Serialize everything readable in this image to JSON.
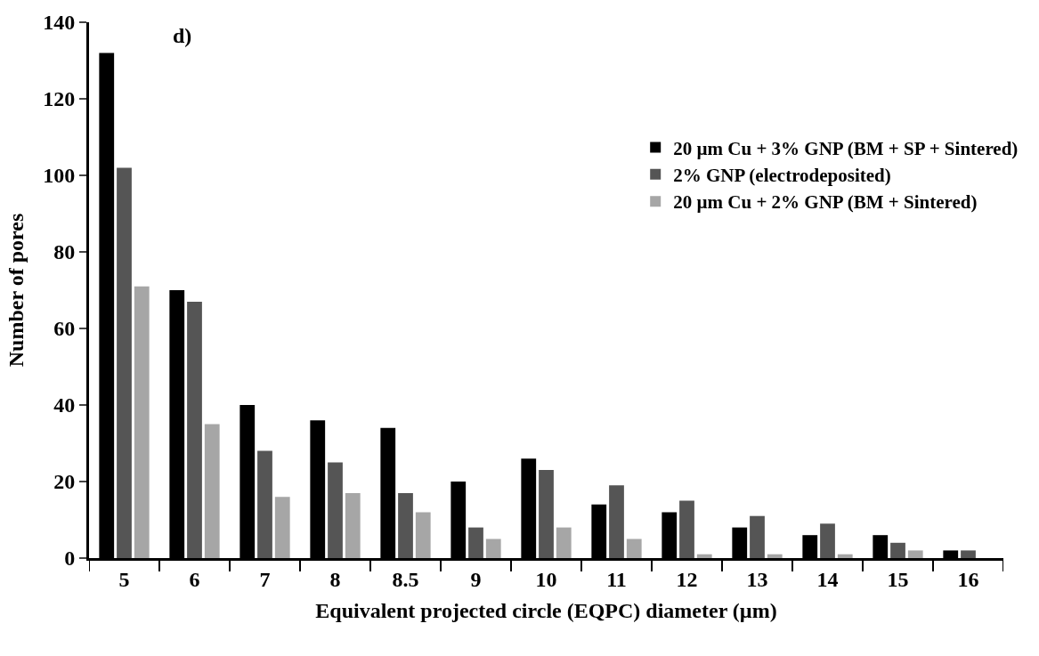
{
  "chart_data": {
    "type": "bar",
    "xlabel": "Equivalent projected circle (EQPC) diameter (µm)",
    "ylabel": "Number of pores",
    "annotations": [
      "d)"
    ],
    "categories": [
      "5",
      "6",
      "7",
      "8",
      "8.5",
      "9",
      "10",
      "11",
      "12",
      "13",
      "14",
      "15",
      "16"
    ],
    "series": [
      {
        "name": "20 µm Cu + 3% GNP (BM + SP + Sintered)",
        "color": "#000000",
        "values": [
          132,
          70,
          40,
          36,
          34,
          20,
          26,
          14,
          12,
          8,
          6,
          6,
          2
        ]
      },
      {
        "name": "2% GNP (electrodeposited)",
        "color": "#555555",
        "values": [
          102,
          67,
          28,
          25,
          17,
          8,
          23,
          19,
          15,
          11,
          9,
          4,
          2
        ]
      },
      {
        "name": "20 µm Cu + 2% GNP (BM + Sintered)",
        "color": "#a6a6a6",
        "values": [
          71,
          35,
          16,
          17,
          12,
          5,
          8,
          5,
          1,
          1,
          1,
          2,
          0
        ]
      }
    ],
    "ylim": [
      0,
      140
    ],
    "yticks": [
      0,
      20,
      40,
      60,
      80,
      100,
      120,
      140
    ],
    "grid": false,
    "legend": "right"
  }
}
